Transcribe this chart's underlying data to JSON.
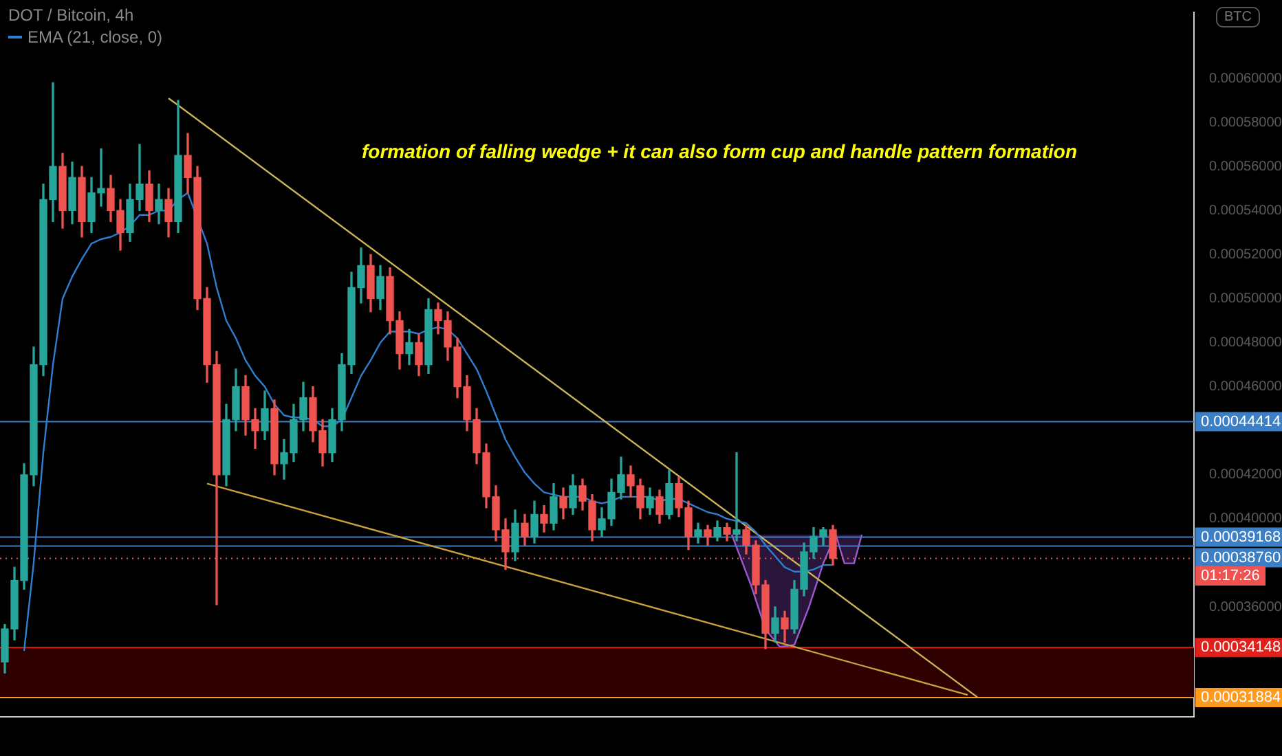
{
  "chart_data": {
    "type": "candlestick",
    "title": "DOT / Bitcoin, 4h",
    "legend": "top left",
    "categories": [
      null,
      null,
      null,
      null,
      null,
      null,
      null,
      null,
      null,
      null,
      null,
      null,
      null,
      null,
      null,
      null,
      null,
      null,
      null,
      null,
      null,
      null,
      null,
      null,
      null,
      null,
      null,
      null,
      null,
      null,
      null,
      null,
      null,
      null,
      null,
      null,
      null,
      null,
      null,
      null,
      null,
      null,
      null,
      null,
      null,
      null,
      null,
      null,
      null,
      null,
      null,
      null,
      null,
      null,
      null,
      null,
      null,
      null,
      null,
      null,
      null,
      null,
      null,
      null,
      null,
      null,
      null,
      null,
      null,
      null,
      null,
      null,
      null,
      null,
      null,
      null,
      null,
      null,
      null,
      null,
      null,
      null,
      null,
      null,
      null,
      null,
      null,
      null,
      null,
      null,
      null,
      null,
      null,
      null,
      null,
      null,
      null,
      null,
      null,
      null,
      null,
      null,
      null,
      null,
      null,
      null,
      null,
      null,
      null,
      null,
      null,
      null,
      null,
      null,
      null,
      null,
      null,
      null,
      null,
      null,
      null,
      null,
      null,
      null
    ],
    "ohlc": [
      [
        0.000335,
        0.000352,
        0.00033,
        0.00035
      ],
      [
        0.00035,
        0.000378,
        0.000345,
        0.000372
      ],
      [
        0.000372,
        0.000425,
        0.000368,
        0.00042
      ],
      [
        0.00042,
        0.000478,
        0.000415,
        0.00047
      ],
      [
        0.00047,
        0.000552,
        0.000465,
        0.000545
      ],
      [
        0.000545,
        0.000598,
        0.000535,
        0.00056
      ],
      [
        0.00056,
        0.000566,
        0.000532,
        0.00054
      ],
      [
        0.00054,
        0.000562,
        0.000534,
        0.000555
      ],
      [
        0.000555,
        0.00056,
        0.000528,
        0.000535
      ],
      [
        0.000535,
        0.000555,
        0.00053,
        0.000548
      ],
      [
        0.000548,
        0.000568,
        0.000542,
        0.00055
      ],
      [
        0.00055,
        0.000556,
        0.000535,
        0.00054
      ],
      [
        0.00054,
        0.000545,
        0.000522,
        0.00053
      ],
      [
        0.00053,
        0.000552,
        0.000526,
        0.000545
      ],
      [
        0.000545,
        0.00057,
        0.00054,
        0.000552
      ],
      [
        0.000552,
        0.000558,
        0.000535,
        0.00054
      ],
      [
        0.00054,
        0.000552,
        0.000534,
        0.000545
      ],
      [
        0.000545,
        0.00055,
        0.000528,
        0.000535
      ],
      [
        0.000535,
        0.00059,
        0.00053,
        0.000565
      ],
      [
        0.000565,
        0.000575,
        0.000548,
        0.000555
      ],
      [
        0.000555,
        0.00056,
        0.000495,
        0.0005
      ],
      [
        0.0005,
        0.000505,
        0.000462,
        0.00047
      ],
      [
        0.00047,
        0.000476,
        0.000361,
        0.00042
      ],
      [
        0.00042,
        0.000452,
        0.000415,
        0.000445
      ],
      [
        0.000445,
        0.000468,
        0.00044,
        0.00046
      ],
      [
        0.00046,
        0.000465,
        0.000438,
        0.000445
      ],
      [
        0.000445,
        0.00045,
        0.000432,
        0.00044
      ],
      [
        0.00044,
        0.000458,
        0.000436,
        0.00045
      ],
      [
        0.00045,
        0.000454,
        0.00042,
        0.000425
      ],
      [
        0.000425,
        0.000436,
        0.000418,
        0.00043
      ],
      [
        0.00043,
        0.000452,
        0.000426,
        0.000445
      ],
      [
        0.000445,
        0.000462,
        0.00044,
        0.000455
      ],
      [
        0.000455,
        0.00046,
        0.000435,
        0.00044
      ],
      [
        0.00044,
        0.000445,
        0.000424,
        0.00043
      ],
      [
        0.00043,
        0.00045,
        0.000426,
        0.000445
      ],
      [
        0.000445,
        0.000475,
        0.00044,
        0.00047
      ],
      [
        0.00047,
        0.000512,
        0.000466,
        0.000505
      ],
      [
        0.000505,
        0.000523,
        0.000498,
        0.000515
      ],
      [
        0.000515,
        0.00052,
        0.000494,
        0.0005
      ],
      [
        0.0005,
        0.000515,
        0.000495,
        0.00051
      ],
      [
        0.00051,
        0.000514,
        0.000484,
        0.00049
      ],
      [
        0.00049,
        0.000494,
        0.000468,
        0.000475
      ],
      [
        0.000475,
        0.000486,
        0.00047,
        0.00048
      ],
      [
        0.00048,
        0.000484,
        0.000465,
        0.00047
      ],
      [
        0.00047,
        0.0005,
        0.000466,
        0.000495
      ],
      [
        0.000495,
        0.000498,
        0.000484,
        0.00049
      ],
      [
        0.00049,
        0.000494,
        0.000472,
        0.000478
      ],
      [
        0.000478,
        0.000482,
        0.000455,
        0.00046
      ],
      [
        0.00046,
        0.000465,
        0.00044,
        0.000445
      ],
      [
        0.000445,
        0.00045,
        0.000425,
        0.00043
      ],
      [
        0.00043,
        0.000434,
        0.000405,
        0.00041
      ],
      [
        0.00041,
        0.000415,
        0.00039,
        0.000395
      ],
      [
        0.000395,
        0.0004,
        0.000377,
        0.000385
      ],
      [
        0.000385,
        0.000404,
        0.000381,
        0.000398
      ],
      [
        0.000398,
        0.000402,
        0.000388,
        0.000392
      ],
      [
        0.000392,
        0.000408,
        0.000389,
        0.000402
      ],
      [
        0.000402,
        0.000406,
        0.000394,
        0.000398
      ],
      [
        0.000398,
        0.000416,
        0.000395,
        0.00041
      ],
      [
        0.00041,
        0.000414,
        0.0004,
        0.000405
      ],
      [
        0.000405,
        0.00042,
        0.000402,
        0.000415
      ],
      [
        0.000415,
        0.000418,
        0.000404,
        0.000408
      ],
      [
        0.000408,
        0.000411,
        0.00039,
        0.000395
      ],
      [
        0.000395,
        0.000405,
        0.000392,
        0.0004
      ],
      [
        0.0004,
        0.000418,
        0.000397,
        0.000412
      ],
      [
        0.000412,
        0.000428,
        0.000409,
        0.00042
      ],
      [
        0.00042,
        0.000424,
        0.00041,
        0.000415
      ],
      [
        0.000415,
        0.000418,
        0.0004,
        0.000405
      ],
      [
        0.000405,
        0.000414,
        0.000402,
        0.00041
      ],
      [
        0.00041,
        0.000413,
        0.000398,
        0.000402
      ],
      [
        0.000402,
        0.000422,
        0.0004,
        0.000416
      ],
      [
        0.000416,
        0.000419,
        0.000401,
        0.000405
      ],
      [
        0.000405,
        0.000408,
        0.000386,
        0.000392
      ],
      [
        0.000392,
        0.000398,
        0.000389,
        0.000395
      ],
      [
        0.000395,
        0.000397,
        0.000388,
        0.000392
      ],
      [
        0.000392,
        0.000399,
        0.00039,
        0.000396
      ],
      [
        0.000396,
        0.000398,
        0.00039,
        0.000393
      ],
      [
        0.000393,
        0.00043,
        0.00039,
        0.000395
      ],
      [
        0.000395,
        0.000397,
        0.000384,
        0.000388
      ],
      [
        0.000388,
        0.00039,
        0.000366,
        0.00037
      ],
      [
        0.00037,
        0.000372,
        0.000341,
        0.000348
      ],
      [
        0.000348,
        0.00036,
        0.000344,
        0.000355
      ],
      [
        0.000355,
        0.000358,
        0.000344,
        0.00035
      ],
      [
        0.00035,
        0.000372,
        0.000348,
        0.000368
      ],
      [
        0.000368,
        0.000389,
        0.000365,
        0.000385
      ],
      [
        0.000385,
        0.000396,
        0.000382,
        0.000392
      ],
      [
        0.000392,
        0.000396,
        0.000388,
        0.000395
      ],
      [
        0.000395,
        0.000397,
        0.000379,
        0.000382
      ],
      null,
      null,
      null,
      null,
      null,
      null,
      null,
      null,
      null,
      null,
      null,
      null,
      null,
      null,
      null,
      null,
      null,
      null,
      null,
      null,
      null,
      null,
      null,
      null,
      null,
      null,
      null,
      null,
      null,
      null,
      null,
      null,
      null,
      null,
      null,
      null,
      null
    ],
    "series": [
      {
        "name": "EMA (21, close, 0)",
        "type": "line",
        "color": "#2f7fd0",
        "values": [
          null,
          null,
          0.00034,
          0.00038,
          0.00043,
          0.00047,
          0.0005,
          0.00051,
          0.000518,
          0.000525,
          0.000527,
          0.000528,
          0.00053,
          0.000533,
          0.000538,
          0.000538,
          0.00054,
          0.00054,
          0.000545,
          0.000548,
          null,
          0.000525,
          0.000505,
          0.00049,
          0.000482,
          0.000472,
          0.000465,
          0.00046,
          0.000452,
          0.000447,
          0.000446,
          0.000446,
          0.000445,
          0.000442,
          0.000442,
          0.000445,
          0.000455,
          0.000465,
          0.000472,
          0.00048,
          0.000485,
          0.000485,
          0.000485,
          0.000484,
          0.000486,
          0.000487,
          0.000486,
          0.000482,
          0.000475,
          0.000468,
          0.000458,
          0.000447,
          0.000436,
          0.000428,
          0.000421,
          0.000416,
          0.000412,
          0.000411,
          0.00041,
          0.00041,
          0.00041,
          0.000408,
          0.000407,
          0.000408,
          0.00041,
          0.00041,
          0.00041,
          0.00041,
          0.000408,
          0.000409,
          0.000409,
          0.000407,
          0.000405,
          0.000403,
          0.000402,
          0.0004,
          0.000399,
          0.000398,
          0.000394,
          0.000388,
          0.000383,
          0.000378,
          0.000376,
          0.000376,
          0.000377,
          0.000379,
          0.000379,
          null,
          null,
          null,
          null,
          null,
          null,
          null,
          null,
          null,
          null,
          null,
          null,
          null,
          null,
          null,
          null,
          null,
          null,
          null,
          null,
          null,
          null,
          null,
          null,
          null,
          null,
          null,
          null,
          null,
          null,
          null,
          null,
          null,
          null,
          null,
          null,
          null
        ]
      },
      {
        "type": "line",
        "color": "#c9b458",
        "values": [
          null,
          null,
          null,
          null,
          null,
          null,
          null,
          null,
          null,
          null,
          null,
          null,
          null,
          null,
          null,
          null,
          null,
          0.000591,
          null,
          null,
          null,
          null,
          null,
          null,
          null,
          null,
          null,
          null,
          null,
          null,
          null,
          null,
          null,
          null,
          null,
          null,
          null,
          null,
          null,
          null,
          null,
          null,
          null,
          null,
          null,
          null,
          null,
          null,
          null,
          null,
          null,
          null,
          null,
          null,
          null,
          null,
          null,
          null,
          null,
          null,
          null,
          null,
          null,
          null,
          null,
          null,
          null,
          null,
          null,
          null,
          null,
          null,
          null,
          null,
          null,
          null,
          null,
          null,
          null,
          null,
          null,
          null,
          null,
          null,
          null,
          null,
          null,
          null,
          null,
          null,
          null,
          null,
          null,
          null,
          null,
          null,
          null,
          null,
          null,
          null,
          null,
          0.000319,
          null,
          null,
          null,
          null,
          null,
          null,
          null,
          null,
          null,
          null,
          null,
          null,
          null,
          null,
          null,
          null,
          null,
          null,
          null,
          null,
          null,
          null
        ]
      },
      {
        "type": "line",
        "color": "#c9a13c",
        "values": [
          null,
          null,
          null,
          null,
          null,
          null,
          null,
          null,
          null,
          null,
          null,
          null,
          null,
          null,
          null,
          null,
          null,
          null,
          null,
          null,
          null,
          0.000416,
          null,
          null,
          null,
          null,
          null,
          null,
          null,
          null,
          null,
          null,
          null,
          null,
          null,
          null,
          null,
          null,
          null,
          null,
          null,
          null,
          null,
          null,
          null,
          null,
          null,
          null,
          null,
          null,
          null,
          null,
          null,
          null,
          null,
          null,
          null,
          null,
          null,
          null,
          null,
          null,
          null,
          null,
          null,
          null,
          null,
          null,
          null,
          null,
          null,
          null,
          null,
          null,
          null,
          null,
          null,
          null,
          null,
          null,
          null,
          null,
          null,
          null,
          null,
          null,
          null,
          null,
          null,
          null,
          null,
          null,
          null,
          null,
          null,
          null,
          null,
          null,
          null,
          null,
          0.00032,
          null,
          null,
          null,
          null,
          null,
          null,
          null,
          null,
          null,
          null,
          null,
          null,
          null,
          null,
          null,
          null,
          null,
          null,
          null,
          null,
          null,
          null,
          null
        ]
      }
    ],
    "ylim": [
      0.00031,
      0.00063
    ],
    "yticks": [
      {
        "value": 0.00036,
        "label": "0.00036000"
      },
      {
        "value": 0.0004,
        "label": "0.00040000"
      },
      {
        "value": 0.00042,
        "label": "0.00042000"
      },
      {
        "value": 0.00046,
        "label": "0.00046000"
      },
      {
        "value": 0.00048,
        "label": "0.00048000"
      },
      {
        "value": 0.0005,
        "label": "0.00050000"
      },
      {
        "value": 0.00052,
        "label": "0.00052000"
      },
      {
        "value": 0.00054,
        "label": "0.00054000"
      },
      {
        "value": 0.00056,
        "label": "0.00056000"
      },
      {
        "value": 0.00058,
        "label": "0.00058000"
      },
      {
        "value": 0.0006,
        "label": "0.00060000"
      }
    ],
    "ref_lines": [
      {
        "axis": "y",
        "value": 0.00044414,
        "label": "0.00044414",
        "color": "#3d7fc4"
      },
      {
        "axis": "y",
        "value": 0.00039168,
        "label": "0.00039168",
        "color": "#3d7fc4"
      },
      {
        "axis": "y",
        "value": 0.0003876,
        "label": "0.00038760",
        "color": "#3d7fc4"
      },
      {
        "axis": "y",
        "value": 0.000382,
        "color": "#ef5350",
        "line_style": "dotted"
      },
      {
        "axis": "y",
        "value": 0.00034148,
        "label": "0.00034148",
        "color": "#e0201a"
      },
      {
        "axis": "y",
        "value": 0.00031884,
        "label": "0.00031884",
        "color": "#ff9a1f"
      }
    ],
    "bands": [
      {
        "axis": "y",
        "from": 0.00031884,
        "to": 0.00034148,
        "color": "#2e0000"
      }
    ],
    "annotations": [
      "formation of falling wedge + it can also form cup and handle pattern formation",
      "BTC",
      "01:17:26"
    ]
  }
}
